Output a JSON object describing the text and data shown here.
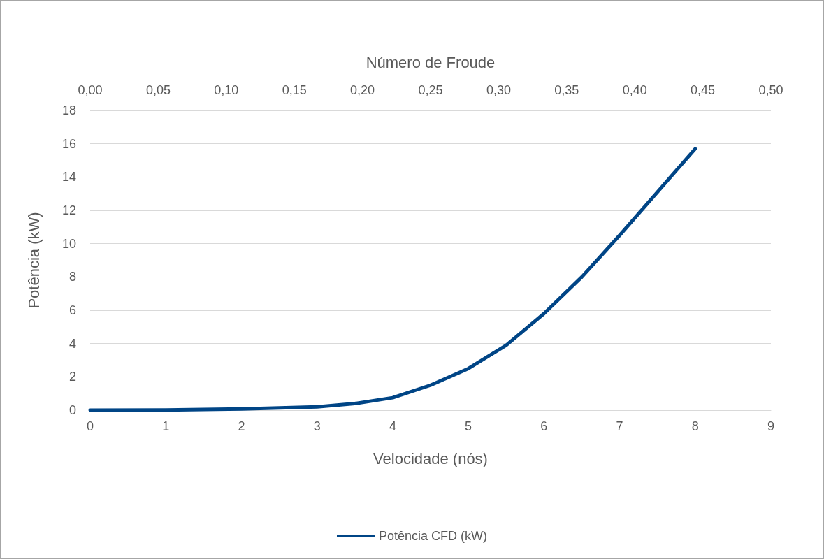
{
  "chart_data": {
    "type": "line",
    "xlabel": "Velocidade (nós)",
    "ylabel": "Potência (kW)",
    "x2label": "Número de Froude",
    "x": [
      0,
      1,
      2,
      3,
      3.5,
      4,
      4.5,
      5,
      5.5,
      6,
      6.5,
      7,
      7.5,
      8
    ],
    "series": [
      {
        "name": "Potência CFD (kW)",
        "color": "#004586",
        "values": [
          0,
          0.01,
          0.07,
          0.2,
          0.4,
          0.75,
          1.5,
          2.5,
          3.9,
          5.8,
          8.0,
          10.5,
          13.1,
          15.7
        ]
      }
    ],
    "xlim": [
      0,
      9
    ],
    "xticks": [
      0,
      1,
      2,
      3,
      4,
      5,
      6,
      7,
      8,
      9
    ],
    "ylim": [
      0,
      18
    ],
    "yticks": [
      0,
      2,
      4,
      6,
      8,
      10,
      12,
      14,
      16,
      18
    ],
    "x2lim": [
      0,
      0.5
    ],
    "x2ticks": [
      {
        "value": 0,
        "label": "0,00"
      },
      {
        "value": 0.05,
        "label": "0,05"
      },
      {
        "value": 0.1,
        "label": "0,10"
      },
      {
        "value": 0.15,
        "label": "0,15"
      },
      {
        "value": 0.2,
        "label": "0,20"
      },
      {
        "value": 0.25,
        "label": "0,25"
      },
      {
        "value": 0.3,
        "label": "0,30"
      },
      {
        "value": 0.35,
        "label": "0,35"
      },
      {
        "value": 0.4,
        "label": "0,40"
      },
      {
        "value": 0.45,
        "label": "0,45"
      },
      {
        "value": 0.5,
        "label": "0,50"
      }
    ],
    "grid": "y",
    "legend": "bottom",
    "marker": "none",
    "line_style": "solid"
  }
}
